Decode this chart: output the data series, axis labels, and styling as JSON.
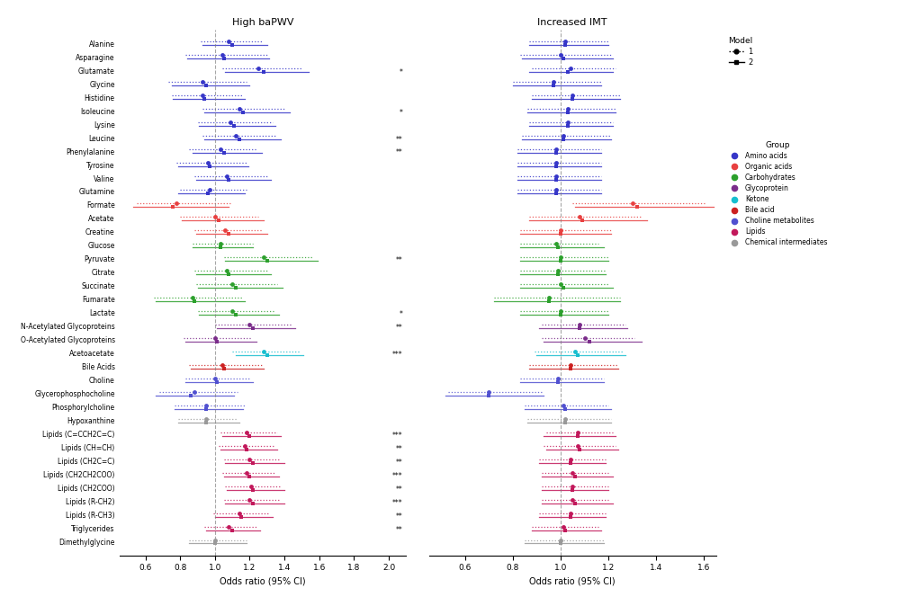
{
  "metabolites": [
    "Alanine",
    "Asparagine",
    "Glutamate",
    "Glycine",
    "Histidine",
    "Isoleucine",
    "Lysine",
    "Leucine",
    "Phenylalanine",
    "Tyrosine",
    "Valine",
    "Glutamine",
    "Formate",
    "Acetate",
    "Creatine",
    "Glucose",
    "Pyruvate",
    "Citrate",
    "Succinate",
    "Fumarate",
    "Lactate",
    "N-Acetylated Glycoproteins",
    "O-Acetylated Glycoproteins",
    "Acetoacetate",
    "Bile Acids",
    "Choline",
    "Glycerophosphocholine",
    "Phosphorylcholine",
    "Hypoxanthine",
    "Lipids (C=CCH2C=C)",
    "Lipids (CH=CH)",
    "Lipids (CH2C=C)",
    "Lipids (CH2CH2COO)",
    "Lipids (CH2COO)",
    "Lipids (R-CH2)",
    "Lipids (R-CH3)",
    "Triglycerides",
    "Dimethylglycine"
  ],
  "groups": [
    "amino",
    "amino",
    "amino",
    "amino",
    "amino",
    "amino",
    "amino",
    "amino",
    "amino",
    "amino",
    "amino",
    "amino",
    "organic",
    "organic",
    "organic",
    "carb",
    "carb",
    "carb",
    "carb",
    "carb",
    "carb",
    "glyco",
    "glyco",
    "ketone",
    "bile",
    "choline",
    "choline",
    "choline",
    "chemical",
    "lipid",
    "lipid",
    "lipid",
    "lipid",
    "lipid",
    "lipid",
    "lipid",
    "lipid",
    "chemical"
  ],
  "group_colors": {
    "amino": "#3636C8",
    "organic": "#E84040",
    "carb": "#2CA02C",
    "glyco": "#7B2D8B",
    "ketone": "#17BECF",
    "bile": "#CC2020",
    "choline": "#5050D0",
    "lipid": "#C2185B",
    "chemical": "#999999"
  },
  "bapwv": {
    "m1_est": [
      1.08,
      1.04,
      1.25,
      0.93,
      0.93,
      1.14,
      1.09,
      1.12,
      1.03,
      0.96,
      1.07,
      0.97,
      0.78,
      1.0,
      1.06,
      1.03,
      1.28,
      1.07,
      1.1,
      0.87,
      1.1,
      1.2,
      1.0,
      1.28,
      1.04,
      1.0,
      0.88,
      0.95,
      0.95,
      1.18,
      1.17,
      1.2,
      1.18,
      1.21,
      1.2,
      1.14,
      1.08,
      1.0
    ],
    "m1_lo": [
      0.92,
      0.83,
      1.04,
      0.73,
      0.75,
      0.93,
      0.9,
      0.93,
      0.85,
      0.78,
      0.88,
      0.8,
      0.55,
      0.8,
      0.88,
      0.87,
      1.05,
      0.88,
      0.89,
      0.65,
      0.9,
      1.0,
      0.82,
      1.1,
      0.85,
      0.83,
      0.68,
      0.77,
      0.79,
      1.03,
      1.02,
      1.05,
      1.04,
      1.06,
      1.05,
      0.99,
      0.94,
      0.85
    ],
    "m1_hi": [
      1.27,
      1.3,
      1.5,
      1.18,
      1.16,
      1.4,
      1.33,
      1.35,
      1.24,
      1.18,
      1.3,
      1.18,
      1.1,
      1.25,
      1.27,
      1.22,
      1.56,
      1.3,
      1.36,
      1.16,
      1.35,
      1.44,
      1.21,
      1.49,
      1.27,
      1.2,
      1.13,
      1.17,
      1.13,
      1.36,
      1.34,
      1.37,
      1.34,
      1.38,
      1.37,
      1.31,
      1.24,
      1.18
    ],
    "m2_est": [
      1.1,
      1.05,
      1.28,
      0.95,
      0.94,
      1.16,
      1.11,
      1.14,
      1.05,
      0.97,
      1.08,
      0.96,
      0.76,
      1.02,
      1.08,
      1.03,
      1.3,
      1.08,
      1.12,
      0.88,
      1.12,
      1.22,
      1.01,
      1.3,
      1.05,
      1.01,
      0.86,
      0.95,
      0.95,
      1.2,
      1.18,
      1.22,
      1.2,
      1.22,
      1.22,
      1.15,
      1.1,
      1.0
    ],
    "m2_lo": [
      0.93,
      0.84,
      1.06,
      0.75,
      0.76,
      0.94,
      0.91,
      0.94,
      0.87,
      0.79,
      0.89,
      0.79,
      0.53,
      0.81,
      0.89,
      0.87,
      1.06,
      0.89,
      0.9,
      0.66,
      0.91,
      1.01,
      0.83,
      1.12,
      0.86,
      0.83,
      0.66,
      0.77,
      0.79,
      1.04,
      1.03,
      1.06,
      1.05,
      1.07,
      1.06,
      1.0,
      0.95,
      0.85
    ],
    "m2_hi": [
      1.3,
      1.31,
      1.54,
      1.2,
      1.17,
      1.43,
      1.35,
      1.38,
      1.27,
      1.19,
      1.32,
      1.17,
      1.08,
      1.28,
      1.3,
      1.22,
      1.59,
      1.32,
      1.39,
      1.17,
      1.37,
      1.46,
      1.24,
      1.51,
      1.28,
      1.22,
      1.11,
      1.16,
      1.14,
      1.38,
      1.36,
      1.4,
      1.37,
      1.4,
      1.4,
      1.33,
      1.26,
      1.18
    ]
  },
  "imt": {
    "m1_est": [
      1.02,
      1.0,
      1.04,
      0.97,
      1.05,
      1.03,
      1.03,
      1.01,
      0.98,
      0.98,
      0.98,
      0.98,
      1.3,
      1.08,
      1.0,
      0.98,
      1.0,
      0.99,
      1.0,
      0.95,
      1.0,
      1.08,
      1.1,
      1.06,
      1.04,
      0.99,
      0.7,
      1.01,
      1.02,
      1.07,
      1.07,
      1.04,
      1.05,
      1.05,
      1.05,
      1.04,
      1.01,
      1.0
    ],
    "m1_lo": [
      0.87,
      0.83,
      0.88,
      0.8,
      0.88,
      0.86,
      0.87,
      0.84,
      0.82,
      0.82,
      0.82,
      0.82,
      1.05,
      0.87,
      0.83,
      0.83,
      0.83,
      0.83,
      0.83,
      0.72,
      0.83,
      0.92,
      0.92,
      0.89,
      0.87,
      0.83,
      0.53,
      0.85,
      0.86,
      0.94,
      0.93,
      0.91,
      0.92,
      0.92,
      0.92,
      0.91,
      0.88,
      0.85
    ],
    "m1_hi": [
      1.2,
      1.21,
      1.23,
      1.17,
      1.25,
      1.23,
      1.22,
      1.21,
      1.17,
      1.17,
      1.17,
      1.17,
      1.61,
      1.34,
      1.21,
      1.16,
      1.2,
      1.19,
      1.2,
      1.25,
      1.2,
      1.27,
      1.31,
      1.26,
      1.24,
      1.18,
      0.92,
      1.2,
      1.21,
      1.22,
      1.23,
      1.19,
      1.2,
      1.2,
      1.2,
      1.19,
      1.16,
      1.18
    ],
    "m2_est": [
      1.02,
      1.01,
      1.03,
      0.97,
      1.05,
      1.03,
      1.03,
      1.01,
      0.98,
      0.98,
      0.98,
      0.98,
      1.32,
      1.09,
      1.0,
      0.99,
      1.0,
      0.99,
      1.01,
      0.95,
      1.0,
      1.08,
      1.12,
      1.07,
      1.04,
      0.99,
      0.7,
      1.02,
      1.02,
      1.07,
      1.08,
      1.04,
      1.06,
      1.05,
      1.06,
      1.04,
      1.02,
      1.0
    ],
    "m2_lo": [
      0.87,
      0.84,
      0.87,
      0.8,
      0.88,
      0.86,
      0.87,
      0.84,
      0.82,
      0.82,
      0.82,
      0.82,
      1.06,
      0.87,
      0.83,
      0.83,
      0.83,
      0.83,
      0.83,
      0.72,
      0.83,
      0.91,
      0.93,
      0.9,
      0.87,
      0.83,
      0.52,
      0.85,
      0.86,
      0.93,
      0.94,
      0.91,
      0.92,
      0.92,
      0.92,
      0.91,
      0.88,
      0.85
    ],
    "m2_hi": [
      1.2,
      1.22,
      1.22,
      1.17,
      1.25,
      1.23,
      1.22,
      1.21,
      1.17,
      1.17,
      1.17,
      1.17,
      1.64,
      1.36,
      1.21,
      1.18,
      1.2,
      1.19,
      1.22,
      1.25,
      1.2,
      1.28,
      1.34,
      1.27,
      1.24,
      1.18,
      0.93,
      1.21,
      1.21,
      1.23,
      1.24,
      1.19,
      1.22,
      1.2,
      1.22,
      1.19,
      1.17,
      1.18
    ]
  },
  "bapwv_stars": {
    "2": "*",
    "5": "*",
    "7": "**",
    "8": "**",
    "16": "**",
    "20": "*",
    "21": "**",
    "23": "***",
    "29": "***",
    "30": "**",
    "31": "**",
    "32": "***",
    "33": "**",
    "34": "***",
    "35": "**",
    "36": "**"
  },
  "imt_stars": {},
  "xlim_bapwv": [
    0.45,
    2.1
  ],
  "xlim_imt": [
    0.45,
    1.65
  ],
  "xlabel": "Odds ratio (95% CI)",
  "vline_bapwv": 1.0,
  "vline_imt": 1.0,
  "title_bapwv": "High baPWV",
  "title_imt": "Increased IMT",
  "fig_bg": "#ffffff"
}
